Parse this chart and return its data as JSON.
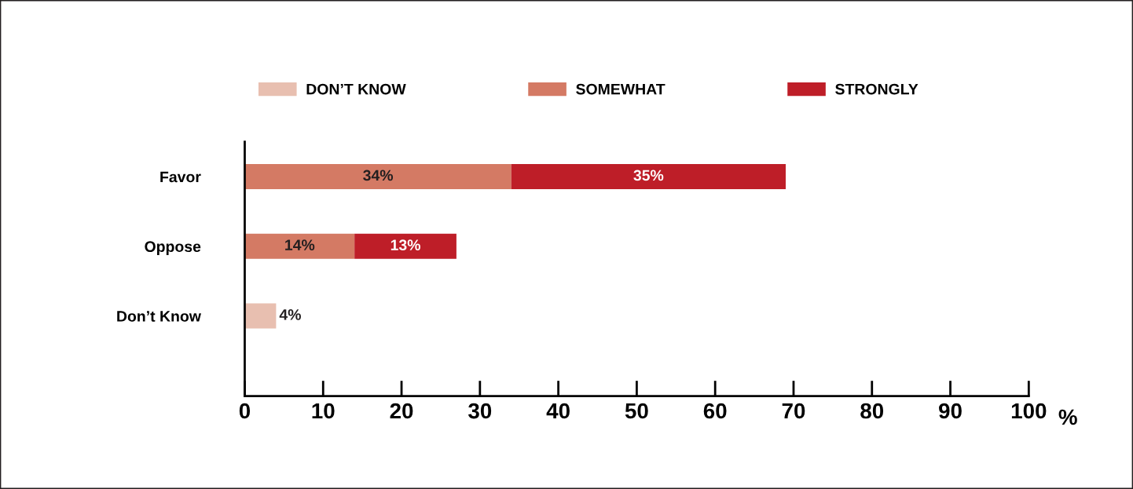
{
  "chart_data": {
    "type": "bar",
    "orientation": "horizontal",
    "stacked": true,
    "categories": [
      "Favor",
      "Oppose",
      "Don’t Know"
    ],
    "series": [
      {
        "name": "DON’T KNOW",
        "color": "#e8bfb0",
        "values": [
          null,
          null,
          4
        ],
        "value_labels": [
          null,
          null,
          "4%"
        ]
      },
      {
        "name": "SOMEWHAT",
        "color": "#d47a64",
        "values": [
          34,
          14,
          null
        ],
        "value_labels": [
          "34%",
          "14%",
          null
        ]
      },
      {
        "name": "STRONGLY",
        "color": "#be1e28",
        "values": [
          35,
          13,
          null
        ],
        "value_labels": [
          "35%",
          "13%",
          null
        ]
      }
    ],
    "xlim": [
      0,
      100
    ],
    "xticks": [
      0,
      10,
      20,
      30,
      40,
      50,
      60,
      70,
      80,
      90,
      100
    ],
    "xlabel": "%",
    "grid": false,
    "legend": "top"
  }
}
